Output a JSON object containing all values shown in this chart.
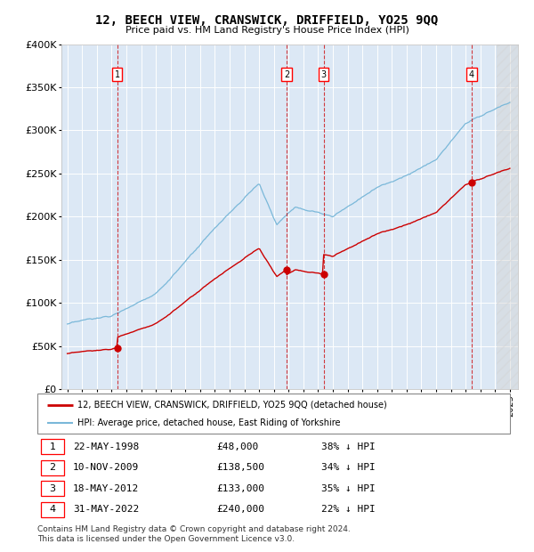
{
  "title": "12, BEECH VIEW, CRANSWICK, DRIFFIELD, YO25 9QQ",
  "subtitle": "Price paid vs. HM Land Registry's House Price Index (HPI)",
  "yticks": [
    0,
    50000,
    100000,
    150000,
    200000,
    250000,
    300000,
    350000,
    400000
  ],
  "ytick_labels": [
    "£0",
    "£50K",
    "£100K",
    "£150K",
    "£200K",
    "£250K",
    "£300K",
    "£350K",
    "£400K"
  ],
  "hpi_color": "#7ab8d9",
  "price_color": "#cc0000",
  "bg_color": "#dce8f5",
  "sale_points": [
    {
      "num": 1,
      "year": 1998.38,
      "price": 48000,
      "date": "22-MAY-1998",
      "label": "£48,000",
      "pct": "38% ↓ HPI"
    },
    {
      "num": 2,
      "year": 2009.86,
      "price": 138500,
      "date": "10-NOV-2009",
      "label": "£138,500",
      "pct": "34% ↓ HPI"
    },
    {
      "num": 3,
      "year": 2012.38,
      "price": 133000,
      "date": "18-MAY-2012",
      "label": "£133,000",
      "pct": "35% ↓ HPI"
    },
    {
      "num": 4,
      "year": 2022.41,
      "price": 240000,
      "date": "31-MAY-2022",
      "label": "£240,000",
      "pct": "22% ↓ HPI"
    }
  ],
  "legend_line1": "12, BEECH VIEW, CRANSWICK, DRIFFIELD, YO25 9QQ (detached house)",
  "legend_line2": "HPI: Average price, detached house, East Riding of Yorkshire",
  "footer1": "Contains HM Land Registry data © Crown copyright and database right 2024.",
  "footer2": "This data is licensed under the Open Government Licence v3.0."
}
